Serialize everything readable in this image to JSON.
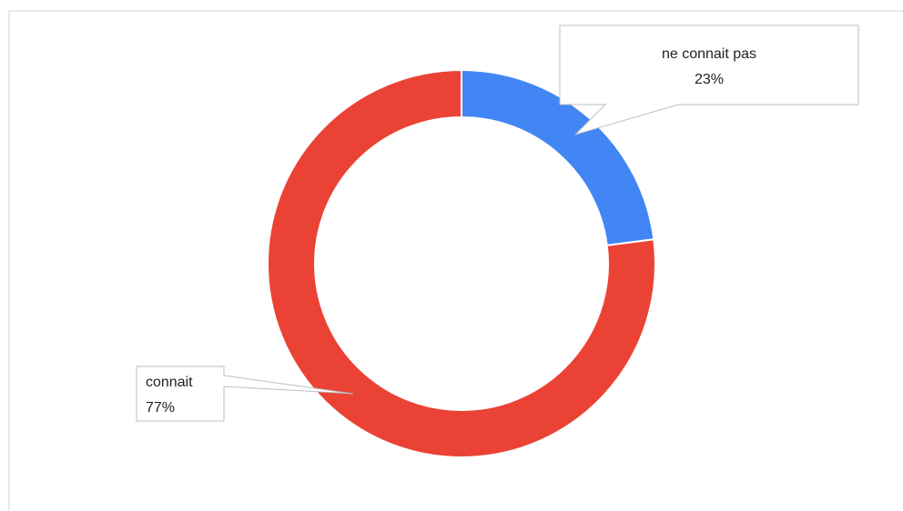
{
  "chart_data": {
    "type": "donut",
    "categories": [
      "ne connait pas",
      "connait"
    ],
    "values": [
      23,
      77
    ],
    "value_labels": [
      "23%",
      "77%"
    ],
    "colors": [
      "#4285f4",
      "#ea4335"
    ]
  }
}
